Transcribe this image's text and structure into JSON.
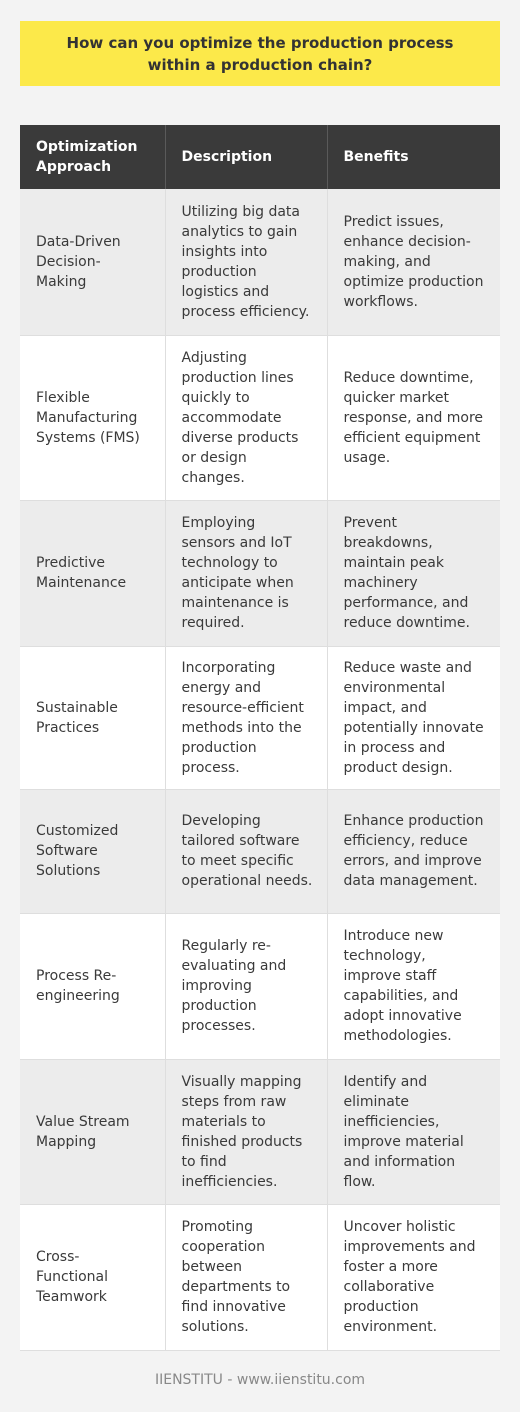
{
  "title": "How can you optimize the production process within a production chain?",
  "table": {
    "headers": [
      "Optimization Approach",
      "Description",
      "Benefits"
    ],
    "rows": [
      {
        "approach": "Data-Driven Decision-Making",
        "description": "Utilizing big data analytics to gain insights into production logistics and process efficiency.",
        "benefits": "Predict issues, enhance decision-making, and optimize production workflows."
      },
      {
        "approach": "Flexible Manufacturing Systems (FMS)",
        "description": "Adjusting production lines quickly to accommodate diverse products or design changes.",
        "benefits": "Reduce downtime, quicker market response, and more efficient equipment usage."
      },
      {
        "approach": "Predictive Maintenance",
        "description": "Employing sensors and IoT technology to anticipate when maintenance is required.",
        "benefits": "Prevent breakdowns, maintain peak machinery performance, and reduce downtime."
      },
      {
        "approach": "Sustainable Practices",
        "description": "Incorporating energy and resource-efficient methods into the production process.",
        "benefits": "Reduce waste and environmental impact, and potentially innovate in process and product design."
      },
      {
        "approach": "Customized Software Solutions",
        "description": "Developing tailored software to meet specific operational needs.",
        "benefits": "Enhance production efficiency, reduce errors, and improve data management."
      },
      {
        "approach": "Process Re-engineering",
        "description": "Regularly re-evaluating and improving production processes.",
        "benefits": "Introduce new technology, improve staff capabilities, and adopt innovative methodologies."
      },
      {
        "approach": "Value Stream Mapping",
        "description": "Visually mapping steps from raw materials to finished products to find inefficiencies.",
        "benefits": "Identify and eliminate inefficiencies, improve material and information flow."
      },
      {
        "approach": "Cross-Functional Teamwork",
        "description": "Promoting cooperation between departments to find innovative solutions.",
        "benefits": "Uncover holistic improvements and foster a more collaborative production environment."
      }
    ]
  },
  "footer": "IIENSTITU - www.iienstitu.com",
  "colors": {
    "title_bg": "#fce94a",
    "header_bg": "#3a3a3a",
    "row_alt_bg": "#ececec",
    "page_bg": "#f3f3f3"
  }
}
